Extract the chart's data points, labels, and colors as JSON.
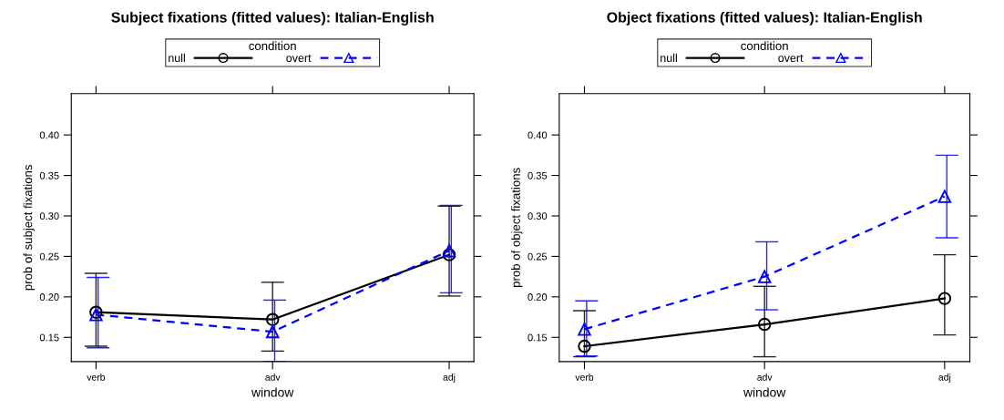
{
  "chart_data": [
    {
      "type": "line",
      "title": "Subject fixations (fitted values): Italian-English",
      "xlabel": "window",
      "ylabel": "prob of subject fixations",
      "legend_title": "condition",
      "legend": "top",
      "categories": [
        "verb",
        "adv",
        "adj"
      ],
      "ylim": [
        0.12,
        0.451
      ],
      "yticks": [
        {
          "value": 0.15,
          "label": "0.15"
        },
        {
          "value": 0.2,
          "label": "0.20"
        },
        {
          "value": 0.25,
          "label": "0.25"
        },
        {
          "value": 0.3,
          "label": "0.30"
        },
        {
          "value": 0.35,
          "label": "0.35"
        },
        {
          "value": 0.4,
          "label": "0.40"
        }
      ],
      "series": [
        {
          "name": "null",
          "color": "#000000",
          "marker": "circle",
          "line_style": "solid",
          "values": [
            0.181,
            0.172,
            0.252
          ],
          "errors": [
            [
              0.139,
              0.229
            ],
            [
              0.133,
              0.218
            ],
            [
              0.201,
              0.312
            ]
          ]
        },
        {
          "name": "overt",
          "color": "#0000ff",
          "marker": "triangle",
          "line_style": "dashed",
          "values": [
            0.178,
            0.157,
            0.257
          ],
          "errors": [
            [
              0.137,
              0.224
            ],
            [
              0.12,
              0.196
            ],
            [
              0.205,
              0.313
            ]
          ]
        }
      ]
    },
    {
      "type": "line",
      "title": "Object fixations (fitted values): Italian-English",
      "xlabel": "window",
      "ylabel": "prob of object fixations",
      "legend_title": "condition",
      "legend": "top",
      "categories": [
        "verb",
        "adv",
        "adj"
      ],
      "ylim": [
        0.12,
        0.451
      ],
      "yticks": [
        {
          "value": 0.15,
          "label": "0.15"
        },
        {
          "value": 0.2,
          "label": "0.20"
        },
        {
          "value": 0.25,
          "label": "0.25"
        },
        {
          "value": 0.3,
          "label": "0.30"
        },
        {
          "value": 0.35,
          "label": "0.35"
        },
        {
          "value": 0.4,
          "label": "0.40"
        }
      ],
      "series": [
        {
          "name": "null",
          "color": "#000000",
          "marker": "circle",
          "line_style": "solid",
          "values": [
            0.139,
            0.166,
            0.198
          ],
          "errors": [
            [
              0.126,
              0.183
            ],
            [
              0.126,
              0.213
            ],
            [
              0.153,
              0.252
            ]
          ]
        },
        {
          "name": "overt",
          "color": "#0000ff",
          "marker": "triangle",
          "line_style": "dashed",
          "values": [
            0.16,
            0.225,
            0.324
          ],
          "errors": [
            [
              0.127,
              0.195
            ],
            [
              0.184,
              0.268
            ],
            [
              0.273,
              0.375
            ]
          ]
        }
      ]
    }
  ]
}
